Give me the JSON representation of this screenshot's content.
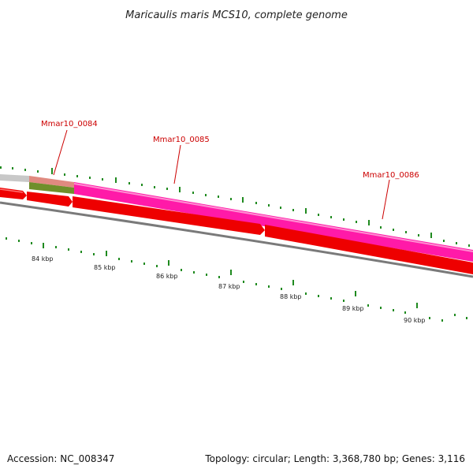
{
  "title": "Maricaulis maris MCS10, complete genome",
  "genes": [
    {
      "label": "Mmar10_0084"
    },
    {
      "label": "Mmar10_0085"
    },
    {
      "label": "Mmar10_0086"
    }
  ],
  "scale_labels": [
    "84 kbp",
    "85 kbp",
    "86 kbp",
    "87 kbp",
    "88 kbp",
    "89 kbp",
    "90 kbp"
  ],
  "footer": {
    "accession": "Accession: NC_008347",
    "summary": "Topology: circular; Length: 3,368,780 bp; Genes: 3,116"
  },
  "colors": {
    "gene_label": "#cc0000",
    "cds_forward": "#ff1aa8",
    "cds_reverse": "#ee0000",
    "rna": "#6f8f2a",
    "other_feature": "#c8c8c8",
    "tick": "#1f8a1f",
    "backbone": "#888888"
  }
}
